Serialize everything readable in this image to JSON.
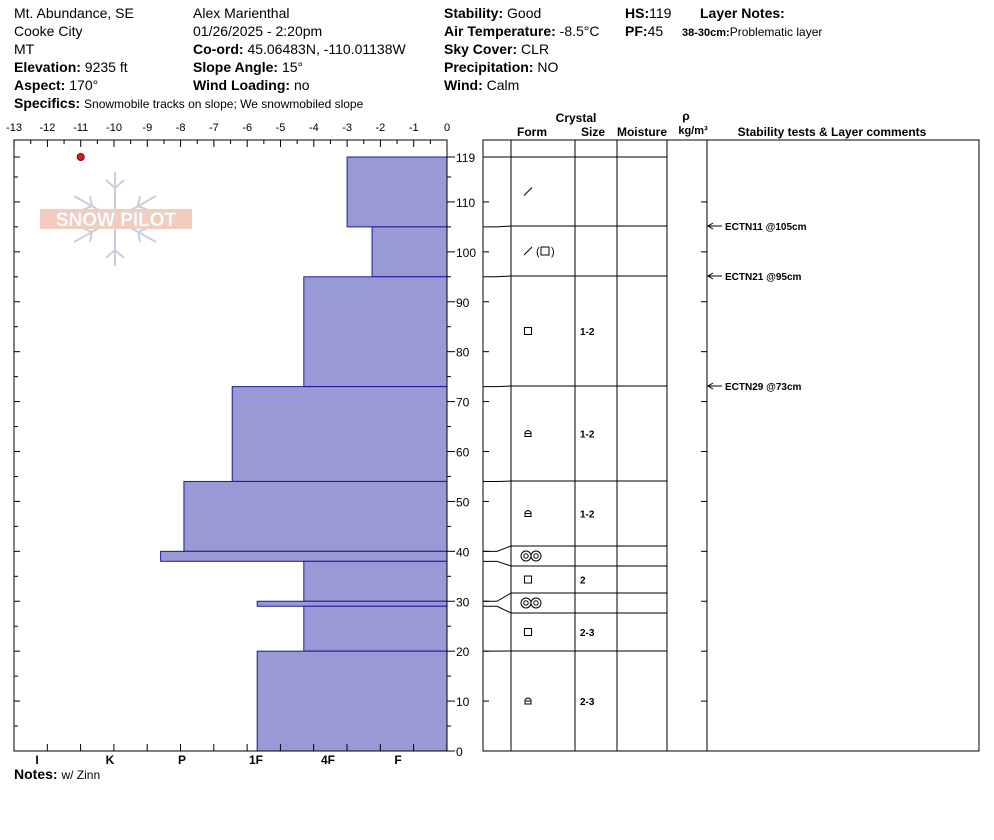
{
  "header": {
    "location": "Mt. Abundance, SE",
    "region": "Cooke City",
    "state": "MT",
    "elevation_label": "Elevation:",
    "elevation": "9235 ft",
    "aspect_label": "Aspect:",
    "aspect": "170°",
    "observer": "Alex Marienthal",
    "datetime": "01/26/2025 - 2:20pm",
    "coord_label": "Co-ord:",
    "coord": "45.06483N, -110.01138W",
    "slope_label": "Slope Angle:",
    "slope": "15°",
    "wind_loading_label": "Wind Loading:",
    "wind_loading": "no",
    "stability_label": "Stability:",
    "stability": "Good",
    "air_temp_label": "Air Temperature:",
    "air_temp": "-8.5°C",
    "sky_label": "Sky Cover:",
    "sky": "CLR",
    "precip_label": "Precipitation:",
    "precip": "NO",
    "wind_label": "Wind:",
    "wind": "Calm",
    "hs_label": "HS:",
    "hs": "119",
    "pf_label": "PF:",
    "pf": "45",
    "layer_notes_label": "Layer Notes:",
    "layer_note_range": "38-30cm:",
    "layer_note_text": "Problematic layer",
    "specifics_label": "Specifics:",
    "specifics": "Snowmobile tracks on slope; We snowmobiled slope",
    "notes_label": "Notes:",
    "notes": "w/ Zinn"
  },
  "logo": {
    "text": "SNOW PILOT"
  },
  "table_headers": {
    "crystal": "Crystal",
    "form": "Form",
    "size": "Size",
    "moisture": "Moisture",
    "rho": "ρ",
    "density_unit": "kg/m³",
    "stability": "Stability tests & Layer comments"
  },
  "chart_data": {
    "type": "bar",
    "orientation": "horizontal",
    "top_x_ticks": [
      "-13",
      "-12",
      "-11",
      "-10",
      "-9",
      "-8",
      "-7",
      "-6",
      "-5",
      "-4",
      "-3",
      "-2",
      "-1",
      "0"
    ],
    "bottom_x_ticks": [
      "I",
      "K",
      "P",
      "1F",
      "4F",
      "F"
    ],
    "y_ticks": [
      "119",
      "110",
      "100",
      "90",
      "80",
      "70",
      "60",
      "50",
      "40",
      "30",
      "20",
      "10",
      "0"
    ],
    "ylim": [
      0,
      119
    ],
    "temperature_points": [
      {
        "depth": 119,
        "temp": -11
      }
    ],
    "layers": [
      {
        "top": 119,
        "bottom": 105,
        "hardness": "F",
        "form": "slash",
        "size": ""
      },
      {
        "top": 105,
        "bottom": 95,
        "hardness": "F+",
        "form": "slash-box",
        "size": ""
      },
      {
        "top": 95,
        "bottom": 73,
        "hardness": "4F",
        "form": "box",
        "size": "1-2"
      },
      {
        "top": 73,
        "bottom": 54,
        "hardness": "1F",
        "form": "bowl",
        "size": "1-2"
      },
      {
        "top": 54,
        "bottom": 40,
        "hardness": "P",
        "form": "bowl",
        "size": "1-2"
      },
      {
        "top": 40,
        "bottom": 38,
        "hardness": "P-",
        "form": "rings",
        "size": ""
      },
      {
        "top": 38,
        "bottom": 30,
        "hardness": "4F",
        "form": "box",
        "size": "2"
      },
      {
        "top": 30,
        "bottom": 29,
        "hardness": "1F+",
        "form": "rings",
        "size": ""
      },
      {
        "top": 29,
        "bottom": 20,
        "hardness": "4F",
        "form": "box",
        "size": "2-3"
      },
      {
        "top": 20,
        "bottom": 0,
        "hardness": "1F+",
        "form": "bowl",
        "size": "2-3"
      }
    ],
    "hardness_scale": {
      "F": 3,
      "F+": 2.25,
      "4F": 4.3,
      "1F": 6.45,
      "P": 7.9,
      "P-": 8.6,
      "1F+": 5.7
    },
    "stability_tests": [
      {
        "depth": 105,
        "label": "ECTN11 @105cm"
      },
      {
        "depth": 95,
        "label": "ECTN21 @95cm"
      },
      {
        "depth": 73,
        "label": "ECTN29 @73cm"
      }
    ]
  }
}
